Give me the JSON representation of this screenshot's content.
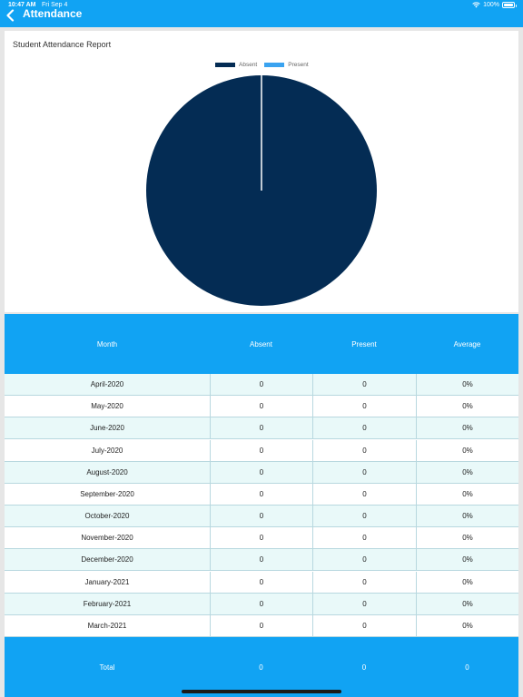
{
  "status_bar": {
    "time": "10:47 AM",
    "date": "Fri Sep 4",
    "battery": "100%"
  },
  "nav": {
    "title": "Attendance",
    "back_icon": "chevron-left-icon"
  },
  "chart_data": {
    "type": "pie",
    "title": "Student Attendance Report",
    "legend": [
      "Absent",
      "Present"
    ],
    "legend_position": "top",
    "values": [
      {
        "name": "Absent",
        "value": 0
      },
      {
        "name": "Present",
        "value": 0
      }
    ],
    "colors": {
      "Absent": "#042c54",
      "Present": "#3aa3f0"
    }
  },
  "table": {
    "headers": [
      "Month",
      "Absent",
      "Present",
      "Average"
    ],
    "rows": [
      [
        "April-2020",
        "0",
        "0",
        "0%"
      ],
      [
        "May-2020",
        "0",
        "0",
        "0%"
      ],
      [
        "June-2020",
        "0",
        "0",
        "0%"
      ],
      [
        "July-2020",
        "0",
        "0",
        "0%"
      ],
      [
        "August-2020",
        "0",
        "0",
        "0%"
      ],
      [
        "September-2020",
        "0",
        "0",
        "0%"
      ],
      [
        "October-2020",
        "0",
        "0",
        "0%"
      ],
      [
        "November-2020",
        "0",
        "0",
        "0%"
      ],
      [
        "December-2020",
        "0",
        "0",
        "0%"
      ],
      [
        "January-2021",
        "0",
        "0",
        "0%"
      ],
      [
        "February-2021",
        "0",
        "0",
        "0%"
      ],
      [
        "March-2021",
        "0",
        "0",
        "0%"
      ]
    ],
    "footer": [
      "Total",
      "0",
      "0",
      "0"
    ]
  }
}
